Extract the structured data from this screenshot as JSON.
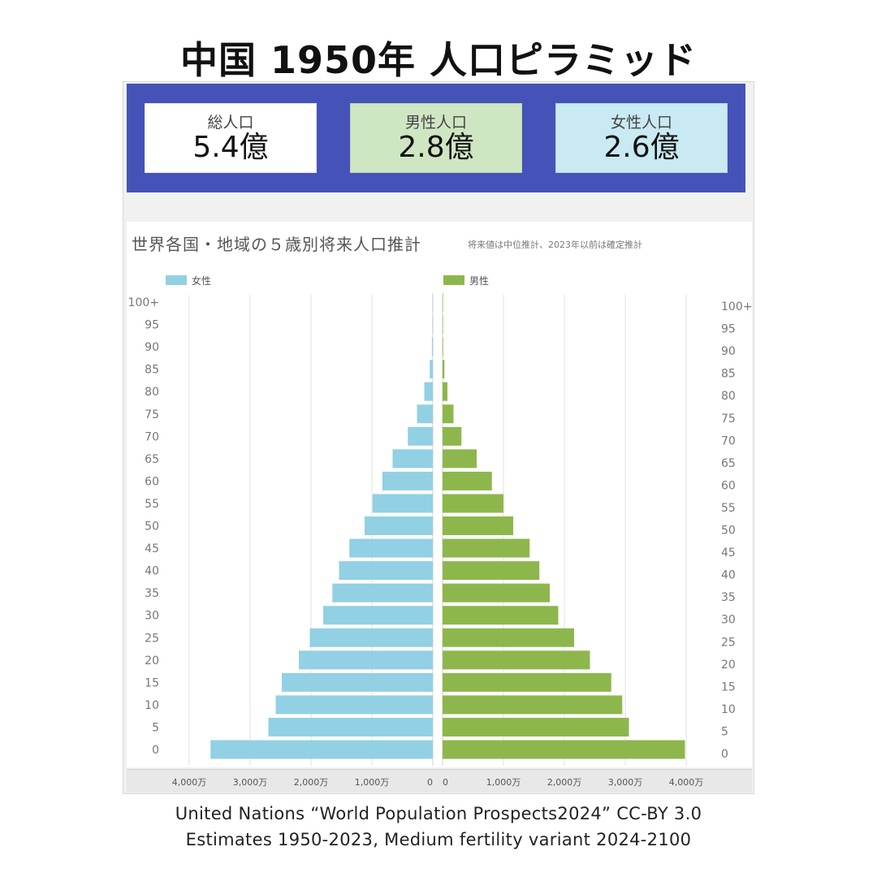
{
  "page": {
    "title": "中国 1950年 人口ピラミッド"
  },
  "stats": {
    "total": {
      "label": "総人口",
      "value": "5.4億"
    },
    "male": {
      "label": "男性人口",
      "value": "2.8億"
    },
    "female": {
      "label": "女性人口",
      "value": "2.6億"
    }
  },
  "chart_data": {
    "type": "bar",
    "orientation": "horizontal-pyramid",
    "title": "世界各国・地域の５歳別将来人口推計",
    "subtitle": "将来値は中位推計、2023年以前は確定推計",
    "legend_placement": "top",
    "grid": true,
    "categories": [
      "0",
      "5",
      "10",
      "15",
      "20",
      "25",
      "30",
      "35",
      "40",
      "45",
      "50",
      "55",
      "60",
      "65",
      "70",
      "75",
      "80",
      "85",
      "90",
      "95",
      "100+"
    ],
    "series": [
      {
        "name": "女性",
        "color": "#92d0e3",
        "side": "left",
        "values": [
          3650,
          2700,
          2580,
          2480,
          2200,
          2020,
          1800,
          1650,
          1540,
          1370,
          1120,
          990,
          830,
          660,
          410,
          260,
          140,
          50,
          15,
          5,
          2
        ]
      },
      {
        "name": "男性",
        "color": "#8db74c",
        "side": "right",
        "values": [
          3980,
          3060,
          2950,
          2770,
          2420,
          2160,
          1900,
          1760,
          1590,
          1430,
          1160,
          1000,
          810,
          560,
          310,
          180,
          80,
          30,
          10,
          5,
          2
        ]
      }
    ],
    "y_tick_labels": [
      "100+",
      "95",
      "90",
      "85",
      "80",
      "75",
      "70",
      "65",
      "60",
      "55",
      "50",
      "45",
      "40",
      "35",
      "30",
      "25",
      "20",
      "15",
      "10",
      "5",
      "0"
    ],
    "x_tick_labels_left": [
      "4,000万",
      "3,000万",
      "2,000万",
      "1,000万",
      "0"
    ],
    "x_tick_labels_right": [
      "0",
      "1,000万",
      "2,000万",
      "3,000万",
      "4,000万"
    ],
    "xlim": [
      0,
      4000
    ],
    "x_unit": "万"
  },
  "footer": {
    "line1": "United Nations “World Population Prospects2024” CC-BY 3.0",
    "line2": "Estimates 1950-2023, Medium fertility variant 2024-2100"
  }
}
